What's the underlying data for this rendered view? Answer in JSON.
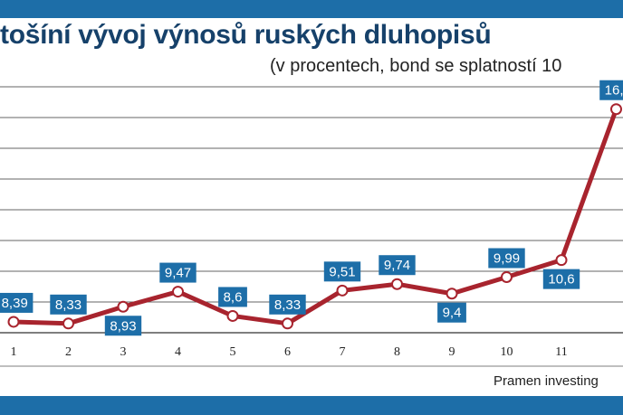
{
  "header": {
    "title": "tošíní vývoj výnosů ruských dluhopisů",
    "subtitle": "(v procentech, bond se splatností 10",
    "source": "Pramen investing"
  },
  "colors": {
    "bar": "#1d6ea8",
    "title": "#16416a",
    "line": "#a8242e",
    "label_bg": "#1d6ea8",
    "grid": "#333333"
  },
  "chart_data": {
    "type": "line",
    "title": "tošíní vývoj výnosů ruských dluhopisů",
    "subtitle": "(v procentech, bond se splatností 10",
    "xlabel": "",
    "ylabel": "",
    "categories": [
      "1",
      "2",
      "3",
      "4",
      "5",
      "6",
      "7",
      "8",
      "9",
      "10",
      "11",
      ""
    ],
    "series": [
      {
        "values": [
          8.39,
          8.33,
          8.93,
          9.47,
          8.6,
          8.33,
          9.51,
          9.74,
          9.4,
          9.99,
          10.6,
          16.0
        ],
        "labels": [
          "8,39",
          "8,33",
          "8,93",
          "9,47",
          "8,6",
          "8,33",
          "9,51",
          "9,74",
          "9,4",
          "9,99",
          "10,6",
          "16,"
        ]
      }
    ],
    "label_position": [
      "above",
      "above",
      "below",
      "above",
      "above",
      "above",
      "above",
      "above",
      "below",
      "above",
      "below",
      "above"
    ],
    "ylim": [
      8,
      16.8
    ],
    "grid": true,
    "legend": "none"
  }
}
